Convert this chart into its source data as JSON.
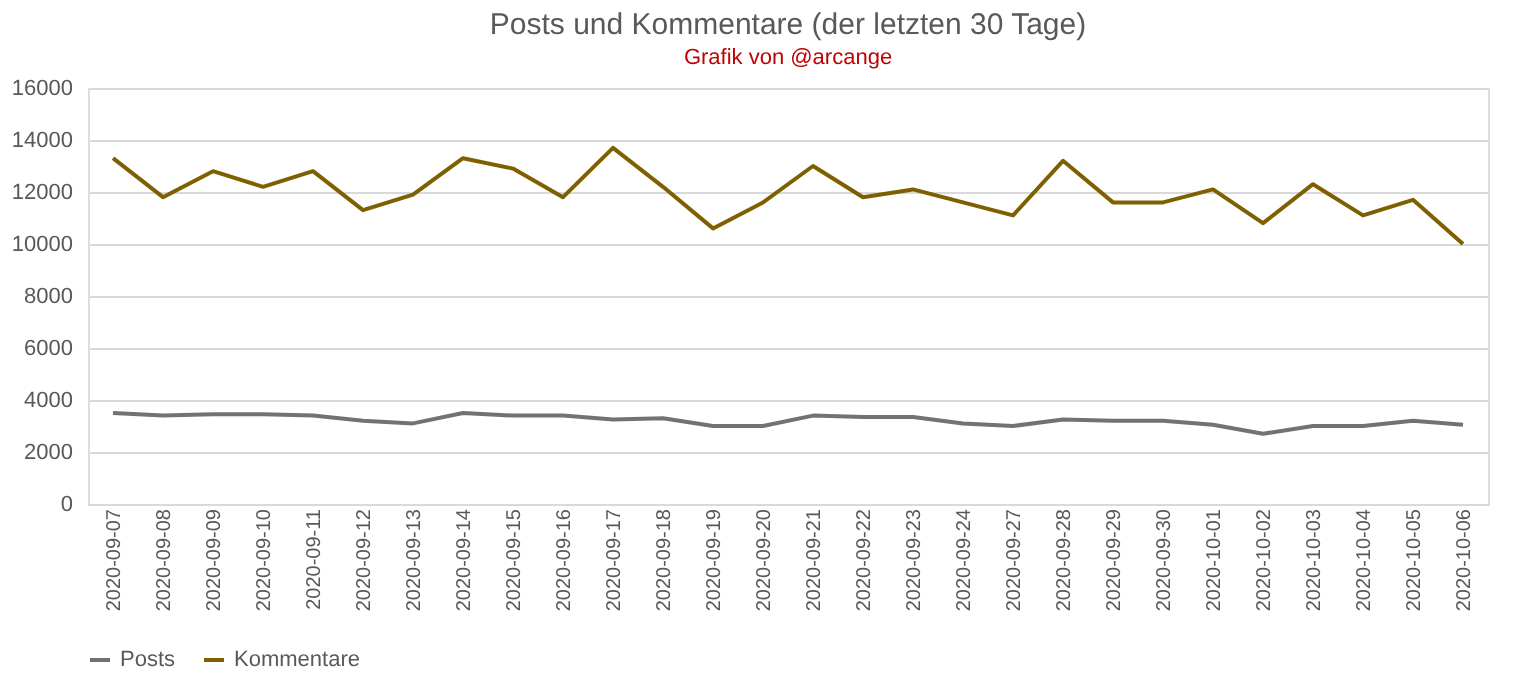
{
  "chart_data": {
    "type": "line",
    "title": "Posts und Kommentare (der letzten 30 Tage)",
    "annotations": [
      "Grafik von @arcange"
    ],
    "categories": [
      "2020-09-07",
      "2020-09-08",
      "2020-09-09",
      "2020-09-10",
      "2020-09-11",
      "2020-09-12",
      "2020-09-13",
      "2020-09-14",
      "2020-09-15",
      "2020-09-16",
      "2020-09-17",
      "2020-09-18",
      "2020-09-19",
      "2020-09-20",
      "2020-09-21",
      "2020-09-22",
      "2020-09-23",
      "2020-09-24",
      "2020-09-27",
      "2020-09-28",
      "2020-09-29",
      "2020-09-30",
      "2020-10-01",
      "2020-10-02",
      "2020-10-03",
      "2020-10-04",
      "2020-10-05",
      "2020-10-06"
    ],
    "series": [
      {
        "name": "Posts",
        "color": "#757171",
        "values": [
          3500,
          3400,
          3450,
          3450,
          3400,
          3200,
          3100,
          3500,
          3400,
          3400,
          3250,
          3300,
          3000,
          3000,
          3400,
          3350,
          3350,
          3100,
          3000,
          3250,
          3200,
          3200,
          3050,
          2700,
          3000,
          3000,
          3200,
          3050
        ]
      },
      {
        "name": "Kommentare",
        "color": "#7f6000",
        "values": [
          13300,
          11800,
          12800,
          12200,
          12800,
          11300,
          11900,
          13300,
          12900,
          11800,
          13700,
          12200,
          10600,
          11600,
          13000,
          11800,
          12100,
          11600,
          11100,
          13200,
          11600,
          11600,
          12100,
          10800,
          12300,
          11100,
          11700,
          10000
        ]
      }
    ],
    "ylim": [
      0,
      16000
    ],
    "yticks": [
      0,
      2000,
      4000,
      6000,
      8000,
      10000,
      12000,
      14000,
      16000
    ],
    "grid": "y",
    "legend": "bottom",
    "marker": "none",
    "line_style": "solid"
  }
}
